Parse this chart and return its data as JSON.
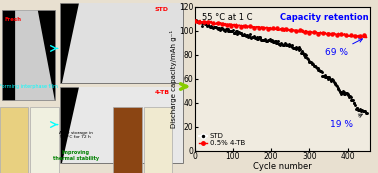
{
  "title": "55 °C at 1 C",
  "xlabel": "Cycle number",
  "ylabel": "Discharge capacity/mAh g⁻¹",
  "xlim": [
    0,
    460
  ],
  "ylim": [
    0,
    120
  ],
  "yticks": [
    0,
    20,
    40,
    60,
    80,
    100,
    120
  ],
  "xticks": [
    0,
    100,
    200,
    300,
    400
  ],
  "capacity_retention_label": "Capacity retention",
  "pct_69": "69 %",
  "pct_19": "19 %",
  "legend_std": "STD",
  "legend_4tb": "0.5% 4-TB",
  "std_color": "black",
  "tb_color": "red",
  "bg_color": "#e8e0d0",
  "plot_bg": "#ddd8cc",
  "arrow_color": "#333333"
}
